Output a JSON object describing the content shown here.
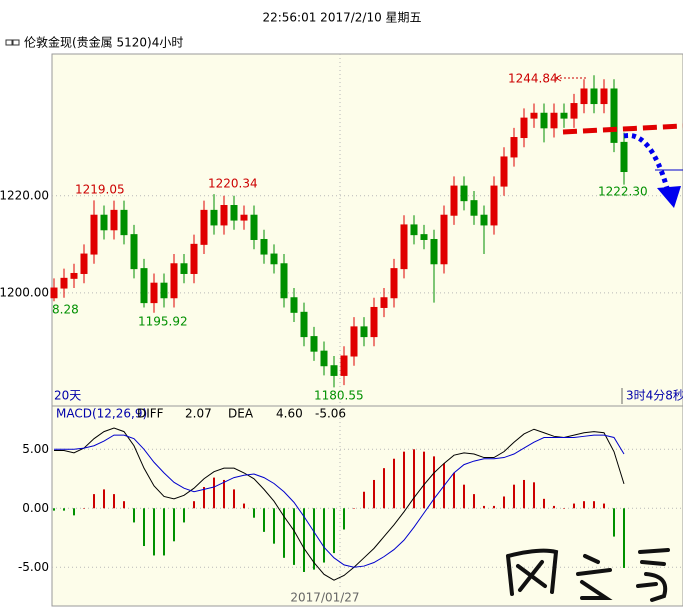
{
  "header": {
    "time": "22:56:01 2017/2/10 星期五"
  },
  "chart_data": [
    {
      "type": "candlestick",
      "title": "伦敦金现(贵金属 5120)4小时",
      "open": [
        1199,
        1201,
        1203,
        1204,
        1208,
        1216,
        1213,
        1217,
        1212,
        1205,
        1198,
        1202,
        1199,
        1206,
        1204,
        1210,
        1217,
        1214,
        1218,
        1215,
        1216,
        1211,
        1208,
        1206,
        1199,
        1196,
        1191,
        1188,
        1185,
        1183,
        1187,
        1193,
        1191,
        1197,
        1199,
        1205,
        1214,
        1212,
        1211,
        1206,
        1216,
        1222,
        1219,
        1216,
        1214,
        1222,
        1228,
        1232,
        1236,
        1237,
        1234,
        1237,
        1236,
        1239,
        1242,
        1239,
        1242,
        1231
      ],
      "high": [
        1203,
        1205,
        1206,
        1210,
        1219.05,
        1218,
        1219,
        1219,
        1214,
        1207,
        1204,
        1204,
        1208,
        1208,
        1212,
        1219,
        1220.34,
        1220,
        1220,
        1218,
        1218,
        1213,
        1210,
        1208,
        1201,
        1198,
        1193,
        1190,
        1187,
        1189,
        1195,
        1195,
        1199,
        1201,
        1207,
        1216,
        1216,
        1214,
        1213,
        1218,
        1224,
        1224,
        1221,
        1218,
        1224,
        1230,
        1234,
        1238,
        1239,
        1239,
        1239,
        1239,
        1241,
        1244,
        1244.84,
        1244,
        1244,
        1233
      ],
      "low": [
        1198.28,
        1199,
        1201,
        1202,
        1206,
        1211,
        1211,
        1210,
        1203,
        1197,
        1195.92,
        1197,
        1197,
        1202,
        1202,
        1208,
        1212,
        1212,
        1213,
        1213,
        1209,
        1206,
        1204,
        1197,
        1194,
        1189,
        1186,
        1183,
        1180.55,
        1181,
        1185,
        1189,
        1189,
        1195,
        1197,
        1203,
        1210,
        1209,
        1198,
        1204,
        1214,
        1217,
        1214,
        1208,
        1212,
        1220,
        1226,
        1230,
        1234,
        1231,
        1232,
        1234,
        1234,
        1237,
        1237,
        1237,
        1229,
        1222.3
      ],
      "close": [
        1201,
        1203,
        1204,
        1208,
        1216,
        1213,
        1217,
        1212,
        1205,
        1198,
        1202,
        1199,
        1206,
        1204,
        1210,
        1217,
        1214,
        1218,
        1215,
        1216,
        1211,
        1208,
        1206,
        1199,
        1196,
        1191,
        1188,
        1185,
        1183,
        1187,
        1193,
        1191,
        1197,
        1199,
        1205,
        1214,
        1212,
        1211,
        1206,
        1216,
        1222,
        1219,
        1216,
        1214,
        1222,
        1228,
        1232,
        1236,
        1237,
        1234,
        1237,
        1236,
        1239,
        1242,
        1239,
        1242,
        1231,
        1225
      ],
      "up_color": "#e00000",
      "down_color": "#009000",
      "ylim": [
        1180,
        1249
      ],
      "yticks": [
        {
          "value": 1200,
          "label": "1200.00"
        },
        {
          "value": 1220,
          "label": "1220.00"
        }
      ],
      "grid": true,
      "annotations": [
        {
          "label": "1219.05",
          "color": "#cc0000"
        },
        {
          "label": "1220.34",
          "color": "#cc0000"
        },
        {
          "label": "1244.84",
          "color": "#cc0000"
        },
        {
          "label": "1222.30",
          "color": "#009000"
        },
        {
          "label": "1195.92",
          "color": "#009000"
        },
        {
          "label": "1180.55",
          "color": "#009000"
        },
        {
          "label": "8.28",
          "color": "#009000"
        }
      ],
      "period_label": "20天",
      "countdown": "3时4分8秒"
    },
    {
      "type": "macd",
      "title": "MACD(12,26,9)",
      "series": [
        {
          "name": "DIFF",
          "color": "#000000",
          "readout": "2.07",
          "values": [
            4.9,
            4.9,
            4.7,
            5.1,
            5.9,
            6.5,
            6.8,
            6.5,
            5.3,
            3.4,
            1.9,
            1.0,
            0.8,
            1.1,
            1.7,
            2.5,
            3.1,
            3.4,
            3.4,
            3.0,
            2.5,
            1.6,
            0.6,
            -0.7,
            -1.9,
            -3.4,
            -4.6,
            -5.6,
            -6.1,
            -5.7,
            -5.0,
            -4.2,
            -3.4,
            -2.4,
            -1.4,
            -0.3,
            0.9,
            2.0,
            3.0,
            3.8,
            4.5,
            4.7,
            4.6,
            4.3,
            4.3,
            4.8,
            5.6,
            6.3,
            6.7,
            6.4,
            6.1,
            6.0,
            6.2,
            6.4,
            6.5,
            6.4,
            4.8,
            2.07
          ]
        },
        {
          "name": "DEA",
          "color": "#0000cc",
          "readout": "4.60",
          "values": [
            5.0,
            5.0,
            5.0,
            5.1,
            5.3,
            5.7,
            6.2,
            6.2,
            5.9,
            5.0,
            3.9,
            3.0,
            2.2,
            1.7,
            1.4,
            1.6,
            1.8,
            2.2,
            2.6,
            2.8,
            2.9,
            2.6,
            2.1,
            1.4,
            0.5,
            -0.7,
            -2.0,
            -3.3,
            -4.2,
            -4.8,
            -5.0,
            -4.9,
            -4.6,
            -4.1,
            -3.5,
            -2.7,
            -1.6,
            -0.4,
            0.8,
            1.9,
            3.0,
            3.7,
            4.0,
            4.2,
            4.2,
            4.3,
            4.6,
            5.1,
            5.6,
            6.0,
            6.0,
            6.0,
            6.0,
            6.1,
            6.2,
            6.2,
            6.0,
            4.6
          ]
        }
      ],
      "histogram": {
        "readout": "-5.06",
        "up_color": "#cc0000",
        "down_color": "#009000",
        "values": [
          -0.2,
          -0.2,
          -0.6,
          0.0,
          1.2,
          1.6,
          1.2,
          0.6,
          -1.2,
          -3.2,
          -4.0,
          -4.0,
          -2.8,
          -1.2,
          0.6,
          1.8,
          2.6,
          2.4,
          1.6,
          0.4,
          -0.8,
          -2.0,
          -3.0,
          -4.2,
          -4.8,
          -5.4,
          -5.2,
          -4.6,
          -3.8,
          -1.8,
          0.0,
          1.4,
          2.4,
          3.4,
          4.2,
          4.8,
          5.0,
          4.8,
          4.4,
          3.8,
          3.0,
          2.0,
          1.2,
          0.2,
          0.2,
          1.0,
          2.0,
          2.4,
          2.2,
          0.8,
          0.2,
          0.0,
          0.4,
          0.6,
          0.6,
          0.4,
          -2.4,
          -5.06
        ]
      },
      "ylim": [
        -8.2,
        8.5
      ],
      "yticks": [
        {
          "value": 5,
          "label": "5.00"
        },
        {
          "value": 0,
          "label": "0.00"
        },
        {
          "value": -5,
          "label": "-5.00"
        }
      ],
      "grid": true,
      "date_label": "2017/01/27"
    }
  ]
}
